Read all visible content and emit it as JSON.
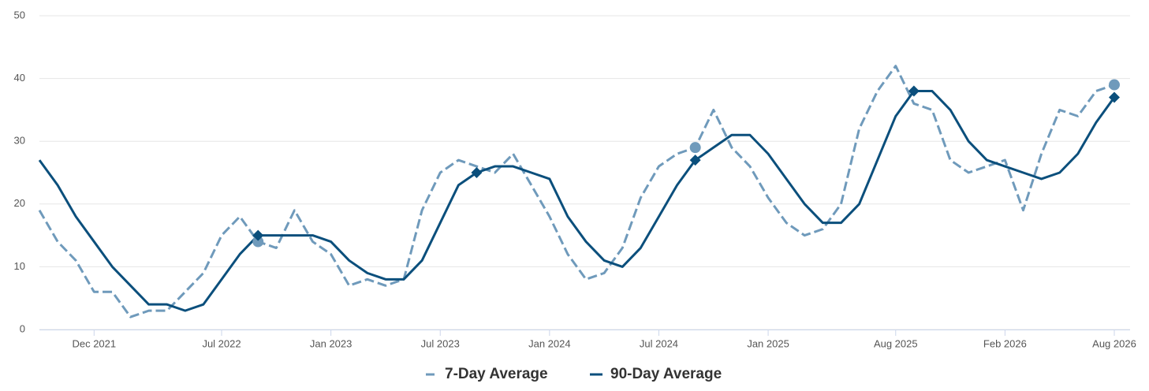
{
  "chart_data": {
    "type": "line",
    "x": [
      "2021-09",
      "2021-10",
      "2021-11",
      "2021-12",
      "2022-01",
      "2022-02",
      "2022-03",
      "2022-04",
      "2022-05",
      "2022-06",
      "2022-07",
      "2022-08",
      "2022-09",
      "2022-10",
      "2022-11",
      "2022-12",
      "2023-01",
      "2023-02",
      "2023-03",
      "2023-04",
      "2023-05",
      "2023-06",
      "2023-07",
      "2023-08",
      "2023-09",
      "2023-10",
      "2023-11",
      "2023-12",
      "2024-01",
      "2024-02",
      "2024-03",
      "2024-04",
      "2024-05",
      "2024-06",
      "2024-07",
      "2024-08",
      "2024-09",
      "2024-10",
      "2024-11",
      "2024-12",
      "2025-01",
      "2025-02",
      "2025-03",
      "2025-04",
      "2025-05",
      "2025-06",
      "2025-07",
      "2025-08",
      "2025-09",
      "2025-10",
      "2025-11",
      "2025-12",
      "2026-01",
      "2026-02",
      "2026-03",
      "2026-04",
      "2026-05",
      "2026-06",
      "2026-07",
      "2026-08"
    ],
    "series": [
      {
        "name": "7-Day Average",
        "color": "#6f9abb",
        "dash": true,
        "marker": "circle",
        "markers": [
          12,
          36,
          59
        ],
        "values": [
          19,
          14,
          11,
          6,
          6,
          2,
          3,
          3,
          6,
          9,
          15,
          18,
          14,
          13,
          19,
          14,
          12,
          7,
          8,
          7,
          8,
          19,
          25,
          27,
          26,
          25,
          28,
          23,
          18,
          12,
          8,
          9,
          13,
          21,
          26,
          28,
          29,
          35,
          29,
          26,
          21,
          17,
          15,
          16,
          20,
          32,
          38,
          42,
          36,
          35,
          27,
          25,
          26,
          27,
          19,
          28,
          35,
          34,
          38,
          39
        ]
      },
      {
        "name": "90-Day Average",
        "color": "#0b4f7c",
        "dash": false,
        "marker": "diamond",
        "markers": [
          12,
          24,
          36,
          48,
          59
        ],
        "values": [
          27,
          23,
          18,
          14,
          10,
          7,
          4,
          4,
          3,
          4,
          8,
          12,
          15,
          15,
          15,
          15,
          14,
          11,
          9,
          8,
          8,
          11,
          17,
          23,
          25,
          26,
          26,
          25,
          24,
          18,
          14,
          11,
          10,
          13,
          18,
          23,
          27,
          29,
          31,
          31,
          28,
          24,
          20,
          17,
          17,
          20,
          27,
          34,
          38,
          38,
          35,
          30,
          27,
          26,
          25,
          24,
          25,
          28,
          33,
          37
        ]
      }
    ],
    "xlim": [
      "2021-09",
      "2026-08"
    ],
    "xticks": [
      {
        "value": "2021-12",
        "label": "Dec 2021"
      },
      {
        "value": "2022-07",
        "label": "Jul 2022"
      },
      {
        "value": "2023-01",
        "label": "Jan 2023"
      },
      {
        "value": "2023-07",
        "label": "Jul 2023"
      },
      {
        "value": "2024-01",
        "label": "Jan 2024"
      },
      {
        "value": "2024-07",
        "label": "Jul 2024"
      },
      {
        "value": "2025-01",
        "label": "Jan 2025"
      },
      {
        "value": "2025-08",
        "label": "Aug 2025"
      },
      {
        "value": "2026-02",
        "label": "Feb 2026"
      },
      {
        "value": "2026-08",
        "label": "Aug 2026"
      }
    ],
    "ylim": [
      0,
      50
    ],
    "yticks": [
      0,
      10,
      20,
      30,
      40,
      50
    ],
    "grid": true,
    "legend": "bottom"
  }
}
